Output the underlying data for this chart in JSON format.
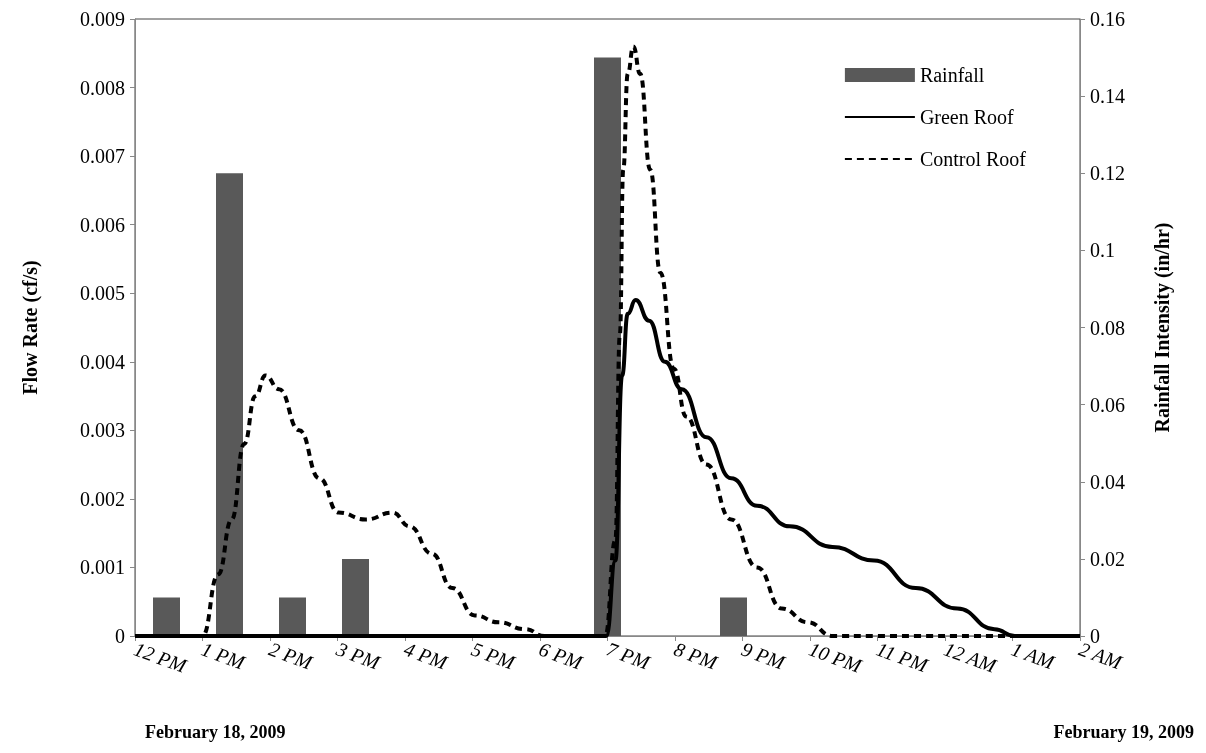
{
  "chart_data": {
    "type": "line",
    "ylabel": "Flow Rate (cf/s)",
    "y2label": "Rainfall Intensity (in/hr)",
    "xlim": [
      "2009-02-18T12:00",
      "2009-02-19T02:00"
    ],
    "xticks": [
      {
        "value": "2009-02-18T12:00",
        "label": "12 PM"
      },
      {
        "value": "2009-02-18T13:00",
        "label": "1 PM"
      },
      {
        "value": "2009-02-18T14:00",
        "label": "2 PM"
      },
      {
        "value": "2009-02-18T15:00",
        "label": "3 PM"
      },
      {
        "value": "2009-02-18T16:00",
        "label": "4 PM"
      },
      {
        "value": "2009-02-18T17:00",
        "label": "5 PM"
      },
      {
        "value": "2009-02-18T18:00",
        "label": "6 PM"
      },
      {
        "value": "2009-02-18T19:00",
        "label": "7 PM"
      },
      {
        "value": "2009-02-18T20:00",
        "label": "8 PM"
      },
      {
        "value": "2009-02-18T21:00",
        "label": "9 PM"
      },
      {
        "value": "2009-02-18T22:00",
        "label": "10 PM"
      },
      {
        "value": "2009-02-18T23:00",
        "label": "11 PM"
      },
      {
        "value": "2009-02-19T00:00",
        "label": "12 AM"
      },
      {
        "value": "2009-02-19T01:00",
        "label": "1 AM"
      },
      {
        "value": "2009-02-19T02:00",
        "label": "2 AM"
      }
    ],
    "ylim": [
      0,
      0.009
    ],
    "yticks": [
      0,
      0.001,
      0.002,
      0.003,
      0.004,
      0.005,
      0.006,
      0.007,
      0.008,
      0.009
    ],
    "y2lim": [
      0,
      0.16
    ],
    "y2ticks": [
      0,
      0.02,
      0.04,
      0.06,
      0.08,
      0.1,
      0.12,
      0.14,
      0.16
    ],
    "grid": false,
    "legend": "top right",
    "marker": "none",
    "series": [
      {
        "name": "Rainfall",
        "type": "bar",
        "axis": "y2",
        "color": "#595959",
        "x": [
          "2009-02-18T12:28",
          "2009-02-18T13:24",
          "2009-02-18T14:20",
          "2009-02-18T15:16",
          "2009-02-18T19:00",
          "2009-02-18T20:52"
        ],
        "values": [
          0.01,
          0.12,
          0.01,
          0.02,
          0.15,
          0.01
        ]
      },
      {
        "name": "Green Roof",
        "line_style": "solid",
        "color": "#000000",
        "x": [
          "2009-02-18T12:00",
          "2009-02-18T18:59",
          "2009-02-18T19:07",
          "2009-02-18T19:13",
          "2009-02-18T19:18",
          "2009-02-18T19:25",
          "2009-02-18T19:37",
          "2009-02-18T19:51",
          "2009-02-18T20:06",
          "2009-02-18T20:28",
          "2009-02-18T20:50",
          "2009-02-18T21:13",
          "2009-02-18T21:42",
          "2009-02-18T22:20",
          "2009-02-18T22:57",
          "2009-02-18T23:34",
          "2009-02-19T00:11",
          "2009-02-19T00:44",
          "2009-02-19T01:02",
          "2009-02-19T02:00"
        ],
        "values": [
          0,
          0,
          0.0011,
          0.0038,
          0.0047,
          0.0049,
          0.0046,
          0.004,
          0.0036,
          0.0029,
          0.0023,
          0.0019,
          0.0016,
          0.0013,
          0.0011,
          0.0007,
          0.0004,
          0.0001,
          0,
          0
        ]
      },
      {
        "name": "Control Roof",
        "line_style": "dashed",
        "color": "#000000",
        "x": [
          "2009-02-18T12:00",
          "2009-02-18T13:00",
          "2009-02-18T13:14",
          "2009-02-18T13:26",
          "2009-02-18T13:37",
          "2009-02-18T13:47",
          "2009-02-18T13:56",
          "2009-02-18T14:08",
          "2009-02-18T14:26",
          "2009-02-18T14:44",
          "2009-02-18T15:01",
          "2009-02-18T15:25",
          "2009-02-18T15:49",
          "2009-02-18T16:04",
          "2009-02-18T16:24",
          "2009-02-18T16:42",
          "2009-02-18T17:02",
          "2009-02-18T17:23",
          "2009-02-18T17:47",
          "2009-02-18T18:04",
          "2009-02-18T18:58",
          "2009-02-18T19:07",
          "2009-02-18T19:11",
          "2009-02-18T19:14",
          "2009-02-18T19:18",
          "2009-02-18T19:23",
          "2009-02-18T19:29",
          "2009-02-18T19:38",
          "2009-02-18T19:47",
          "2009-02-18T19:59",
          "2009-02-18T20:10",
          "2009-02-18T20:28",
          "2009-02-18T20:50",
          "2009-02-18T21:13",
          "2009-02-18T21:35",
          "2009-02-18T21:58",
          "2009-02-18T22:20",
          "2009-02-18T22:57",
          "2009-02-19T02:00"
        ],
        "values": [
          0,
          0,
          0.0009,
          0.0017,
          0.0028,
          0.0035,
          0.0038,
          0.0036,
          0.003,
          0.0023,
          0.0018,
          0.0017,
          0.0018,
          0.0016,
          0.0012,
          0.0007,
          0.0003,
          0.0002,
          0.0001,
          0,
          0,
          0.0014,
          0.0044,
          0.0068,
          0.0082,
          0.0086,
          0.0082,
          0.0068,
          0.0053,
          0.0039,
          0.0032,
          0.0025,
          0.0017,
          0.001,
          0.0004,
          0.0002,
          0,
          0,
          0
        ]
      }
    ],
    "annotations": [
      "February 18, 2009",
      "February 19, 2009"
    ]
  }
}
